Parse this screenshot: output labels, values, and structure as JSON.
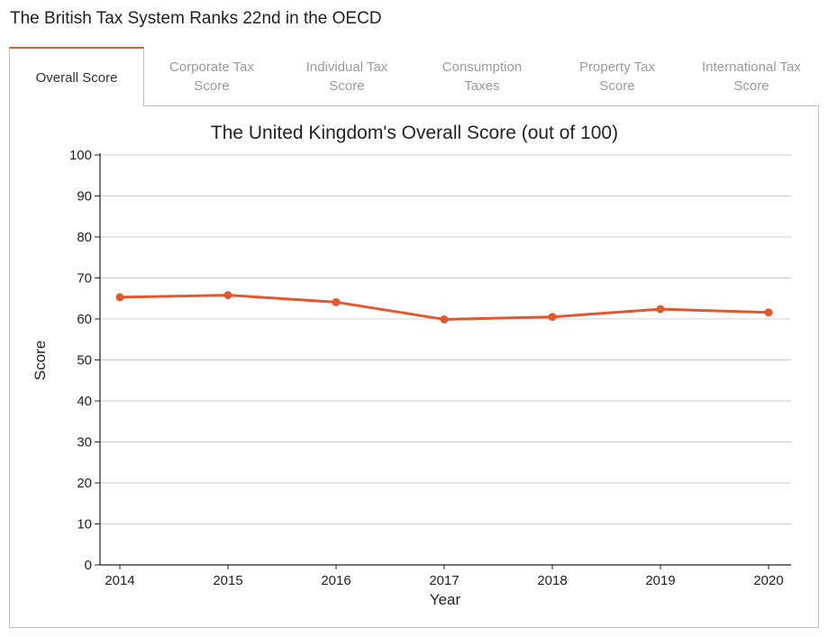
{
  "page": {
    "title": "The British Tax System Ranks 22nd in the OECD"
  },
  "tabs": [
    {
      "label": "Overall Score",
      "active": true
    },
    {
      "label": "Corporate Tax\nScore",
      "active": false
    },
    {
      "label": "Individual Tax\nScore",
      "active": false
    },
    {
      "label": "Consumption\nTaxes",
      "active": false
    },
    {
      "label": "Property Tax\nScore",
      "active": false
    },
    {
      "label": "International Tax\nScore",
      "active": false
    }
  ],
  "colors": {
    "accent": "#e0582c",
    "line": "#e0582c",
    "grid": "#cccccc",
    "axis": "#222222",
    "tab_inactive_text": "#9a9a9a"
  },
  "chart_data": {
    "type": "line",
    "title": "The United Kingdom's Overall Score (out of 100)",
    "xlabel": "Year",
    "ylabel": "Score",
    "categories": [
      "2014",
      "2015",
      "2016",
      "2017",
      "2018",
      "2019",
      "2020"
    ],
    "series": [
      {
        "values": [
          65.3,
          65.8,
          64.1,
          59.9,
          60.5,
          62.4,
          61.6
        ]
      }
    ],
    "ylim": [
      0,
      100
    ],
    "yticks": [
      0,
      10,
      20,
      30,
      40,
      50,
      60,
      70,
      80,
      90,
      100
    ],
    "grid": true,
    "legend": "none"
  }
}
